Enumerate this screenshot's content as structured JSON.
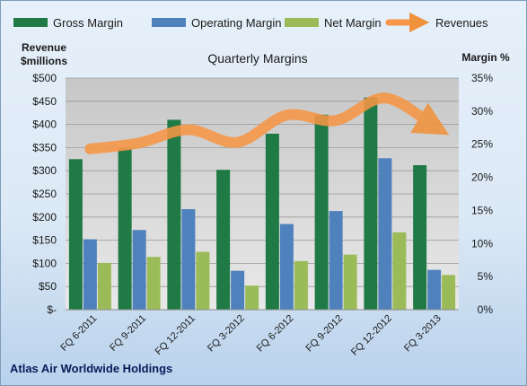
{
  "chart_data": {
    "type": "bar",
    "title": "Quarterly Margins",
    "left_axis_label": [
      "Revenue",
      "$millions"
    ],
    "right_axis_label": "Margin %",
    "footer": "Atlas Air Worldwide Holdings",
    "categories": [
      "FQ 6-2011",
      "FQ 9-2011",
      "FQ 12-2011",
      "FQ 3-2012",
      "FQ 6-2012",
      "FQ 9-2012",
      "FQ 12-2012",
      "FQ 3-2013"
    ],
    "left_ticks": [
      "$-",
      "$50",
      "$100",
      "$150",
      "$200",
      "$250",
      "$300",
      "$350",
      "$400",
      "$450",
      "$500"
    ],
    "right_ticks": [
      "0%",
      "5%",
      "10%",
      "15%",
      "20%",
      "25%",
      "30%",
      "35%"
    ],
    "ylim": [
      0,
      500
    ],
    "y2lim": [
      0,
      35
    ],
    "grid": true,
    "legend_position": "top",
    "series": [
      {
        "name": "Gross Margin",
        "axis": "left",
        "color": "#1f7a45",
        "values": [
          325,
          348,
          410,
          302,
          380,
          421,
          458,
          312
        ]
      },
      {
        "name": "Operating Margin",
        "axis": "left",
        "color": "#4f81bd",
        "values": [
          152,
          172,
          217,
          84,
          185,
          213,
          327,
          86
        ]
      },
      {
        "name": "Net Margin",
        "axis": "left",
        "color": "#9bbb59",
        "values": [
          101,
          114,
          125,
          52,
          105,
          119,
          167,
          75
        ]
      },
      {
        "name": "Revenues",
        "axis": "right",
        "type": "line",
        "color": "#f79646",
        "values": [
          24.3,
          25.2,
          27.2,
          25.3,
          29.4,
          28.6,
          32.0,
          27.7
        ]
      }
    ]
  }
}
